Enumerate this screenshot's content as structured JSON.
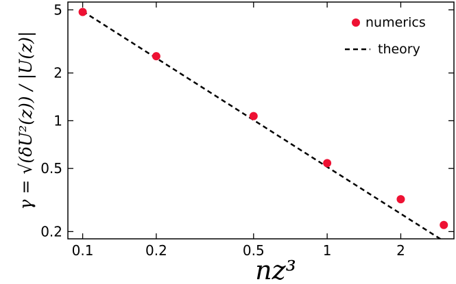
{
  "chart_data": {
    "type": "scatter",
    "xlabel": "nz³",
    "ylabel": "γ = √(δU²(z)) / |U(z)|",
    "x_scale": "log",
    "y_scale": "log",
    "xlim": [
      0.087,
      3.3
    ],
    "ylim": [
      0.18,
      5.6
    ],
    "x_ticks": [
      0.1,
      0.2,
      0.5,
      1,
      2
    ],
    "x_tick_labels": [
      "0.1",
      "0.2",
      "0.5",
      "1",
      "2"
    ],
    "y_ticks": [
      0.2,
      0.5,
      1,
      2,
      5
    ],
    "y_tick_labels": [
      "0.2",
      "0.5",
      "1",
      "2",
      "5"
    ],
    "grid": false,
    "legend_position": "top-right",
    "series": [
      {
        "name": "numerics",
        "kind": "scatter",
        "color": "#ee1133",
        "x": [
          0.1,
          0.2,
          0.5,
          1,
          2,
          3
        ],
        "y": [
          4.85,
          2.55,
          1.07,
          0.54,
          0.32,
          0.22
        ]
      },
      {
        "name": "theory",
        "kind": "line",
        "style": "dashed",
        "color": "#000000",
        "x": [
          0.1,
          3.0
        ],
        "y": [
          4.9,
          0.174
        ]
      }
    ]
  }
}
